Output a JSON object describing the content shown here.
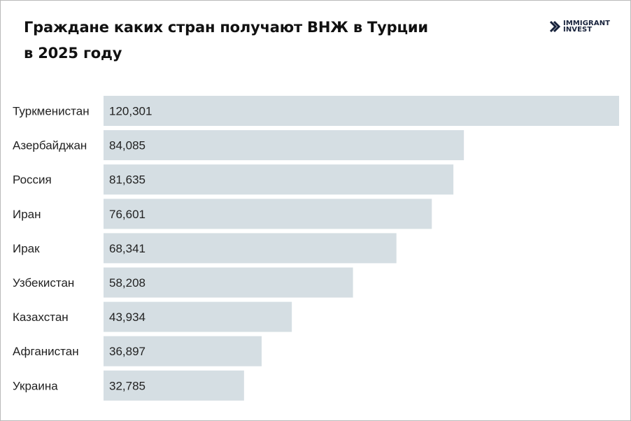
{
  "header": {
    "title_line1": "Граждане каких стран получают ВНЖ в Турции",
    "title_line2": "в 2025 году"
  },
  "logo": {
    "line1": "IMMIGRANT",
    "line2": "INVEST",
    "icon": "immigrant-invest-logo-icon",
    "color": "#17223b"
  },
  "colors": {
    "bar": "#d5dee3",
    "text": "#222222"
  },
  "chart_data": {
    "type": "bar",
    "orientation": "horizontal",
    "title": "Граждане каких стран получают ВНЖ в Турции в 2025 году",
    "categories": [
      "Туркменистан",
      "Азербайджан",
      "Россия",
      "Иран",
      "Ирак",
      "Узбекистан",
      "Казахстан",
      "Афганистан",
      "Украина"
    ],
    "values": [
      120301,
      84085,
      81635,
      76601,
      68341,
      58208,
      43934,
      36897,
      32785
    ],
    "value_labels": [
      "120,301",
      "84,085",
      "81,635",
      "76,601",
      "68,341",
      "58,208",
      "43,934",
      "36,897",
      "32,785"
    ],
    "xlim": [
      0,
      120301
    ],
    "grid": false,
    "legend": "none"
  }
}
